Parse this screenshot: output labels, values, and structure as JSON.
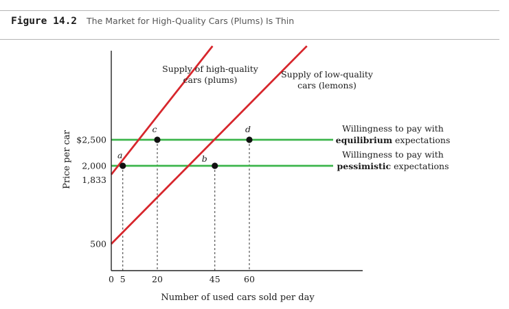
{
  "figure": {
    "number": "Figure 14.2",
    "title": "The Market for High-Quality Cars (Plums) Is Thin"
  },
  "chart_data": {
    "type": "line",
    "xlabel": "Number of used cars sold per day",
    "ylabel": "Price per car",
    "x_ticks": [
      {
        "value": 0,
        "label": "0"
      },
      {
        "value": 5,
        "label": "5"
      },
      {
        "value": 20,
        "label": "20"
      },
      {
        "value": 45,
        "label": "45"
      },
      {
        "value": 60,
        "label": "60"
      }
    ],
    "y_ticks": [
      {
        "value": 2500,
        "label": "$2,500"
      },
      {
        "value": 2000,
        "label": "2,000"
      },
      {
        "value": 1833,
        "label": "1,833"
      },
      {
        "value": 500,
        "label": "500"
      }
    ],
    "series": [
      {
        "name_lines": [
          "Supply of high-quality",
          "cars (plums)"
        ],
        "color": "#d7262c",
        "points": [
          {
            "x": 0,
            "y": 1833
          },
          {
            "x": 44,
            "y": 4300
          }
        ]
      },
      {
        "name_lines": [
          "Supply of low-quality",
          "cars (lemons)"
        ],
        "color": "#d7262c",
        "points": [
          {
            "x": 0,
            "y": 500
          },
          {
            "x": 85,
            "y": 4300
          }
        ]
      }
    ],
    "horizontal_lines": [
      {
        "y": 2500,
        "color": "#3bb54a",
        "label_plain": "Willingness to pay with",
        "label_bold": "equilibrium",
        "label_tail": " expectations"
      },
      {
        "y": 2000,
        "color": "#3bb54a",
        "label_plain": "Willingness to pay with",
        "label_bold": "pessimistic",
        "label_tail": " expectations"
      }
    ],
    "points": [
      {
        "label": "a",
        "x": 5,
        "y": 2000
      },
      {
        "label": "c",
        "x": 20,
        "y": 2500
      },
      {
        "label": "b",
        "x": 45,
        "y": 2000
      },
      {
        "label": "d",
        "x": 60,
        "y": 2500
      }
    ],
    "xlim": [
      0,
      105
    ],
    "ylim": [
      0,
      4300
    ],
    "grid": false
  }
}
